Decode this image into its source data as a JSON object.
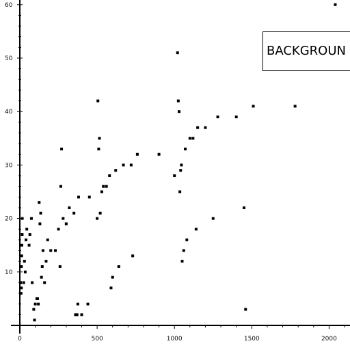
{
  "chart_data": {
    "type": "scatter",
    "title": "",
    "xlabel": "",
    "ylabel": "",
    "xlim": [
      0,
      2100
    ],
    "ylim": [
      0,
      60
    ],
    "x_ticks": [
      0,
      500,
      1000,
      1500,
      2000
    ],
    "y_ticks": [
      10,
      20,
      30,
      40,
      50,
      60
    ],
    "x_tick_labels": [
      "0",
      "500",
      "1000",
      "1500",
      "2000"
    ],
    "y_tick_labels": [
      "10",
      "20",
      "30",
      "40",
      "50",
      "60"
    ],
    "grid": false,
    "legend": {
      "position": "top-right",
      "label": "BACKGROUN"
    },
    "series": [
      {
        "color": "#000000",
        "points": [
          [
            5,
            8
          ],
          [
            8,
            6
          ],
          [
            10,
            7
          ],
          [
            10,
            11
          ],
          [
            12,
            13
          ],
          [
            13,
            15
          ],
          [
            15,
            17
          ],
          [
            16,
            20
          ],
          [
            25,
            8
          ],
          [
            30,
            12
          ],
          [
            35,
            10
          ],
          [
            40,
            16
          ],
          [
            45,
            18
          ],
          [
            60,
            15
          ],
          [
            65,
            17
          ],
          [
            75,
            20
          ],
          [
            80,
            8
          ],
          [
            90,
            3
          ],
          [
            95,
            1
          ],
          [
            100,
            4
          ],
          [
            110,
            5
          ],
          [
            115,
            5
          ],
          [
            120,
            4
          ],
          [
            125,
            23
          ],
          [
            130,
            19
          ],
          [
            135,
            21
          ],
          [
            140,
            9
          ],
          [
            145,
            11
          ],
          [
            150,
            14
          ],
          [
            160,
            8
          ],
          [
            170,
            12
          ],
          [
            180,
            16
          ],
          [
            200,
            14
          ],
          [
            230,
            14
          ],
          [
            250,
            18
          ],
          [
            260,
            11
          ],
          [
            265,
            26
          ],
          [
            270,
            33
          ],
          [
            280,
            20
          ],
          [
            300,
            19
          ],
          [
            320,
            22
          ],
          [
            350,
            21
          ],
          [
            360,
            2
          ],
          [
            370,
            2
          ],
          [
            375,
            4
          ],
          [
            380,
            24
          ],
          [
            400,
            2
          ],
          [
            440,
            4
          ],
          [
            450,
            24
          ],
          [
            500,
            20
          ],
          [
            505,
            42
          ],
          [
            510,
            33
          ],
          [
            515,
            35
          ],
          [
            520,
            21
          ],
          [
            530,
            25
          ],
          [
            540,
            26
          ],
          [
            560,
            26
          ],
          [
            580,
            28
          ],
          [
            590,
            7
          ],
          [
            600,
            9
          ],
          [
            620,
            29
          ],
          [
            640,
            11
          ],
          [
            670,
            30
          ],
          [
            720,
            30
          ],
          [
            730,
            13
          ],
          [
            760,
            32
          ],
          [
            900,
            32
          ],
          [
            1000,
            28
          ],
          [
            1020,
            51
          ],
          [
            1025,
            42
          ],
          [
            1030,
            40
          ],
          [
            1035,
            25
          ],
          [
            1040,
            29
          ],
          [
            1045,
            30
          ],
          [
            1050,
            12
          ],
          [
            1060,
            14
          ],
          [
            1070,
            33
          ],
          [
            1080,
            16
          ],
          [
            1100,
            35
          ],
          [
            1120,
            35
          ],
          [
            1140,
            18
          ],
          [
            1150,
            37
          ],
          [
            1200,
            37
          ],
          [
            1250,
            20
          ],
          [
            1280,
            39
          ],
          [
            1400,
            39
          ],
          [
            1450,
            22
          ],
          [
            1460,
            3
          ],
          [
            1510,
            41
          ],
          [
            1780,
            41
          ],
          [
            2040,
            60
          ]
        ]
      }
    ]
  }
}
